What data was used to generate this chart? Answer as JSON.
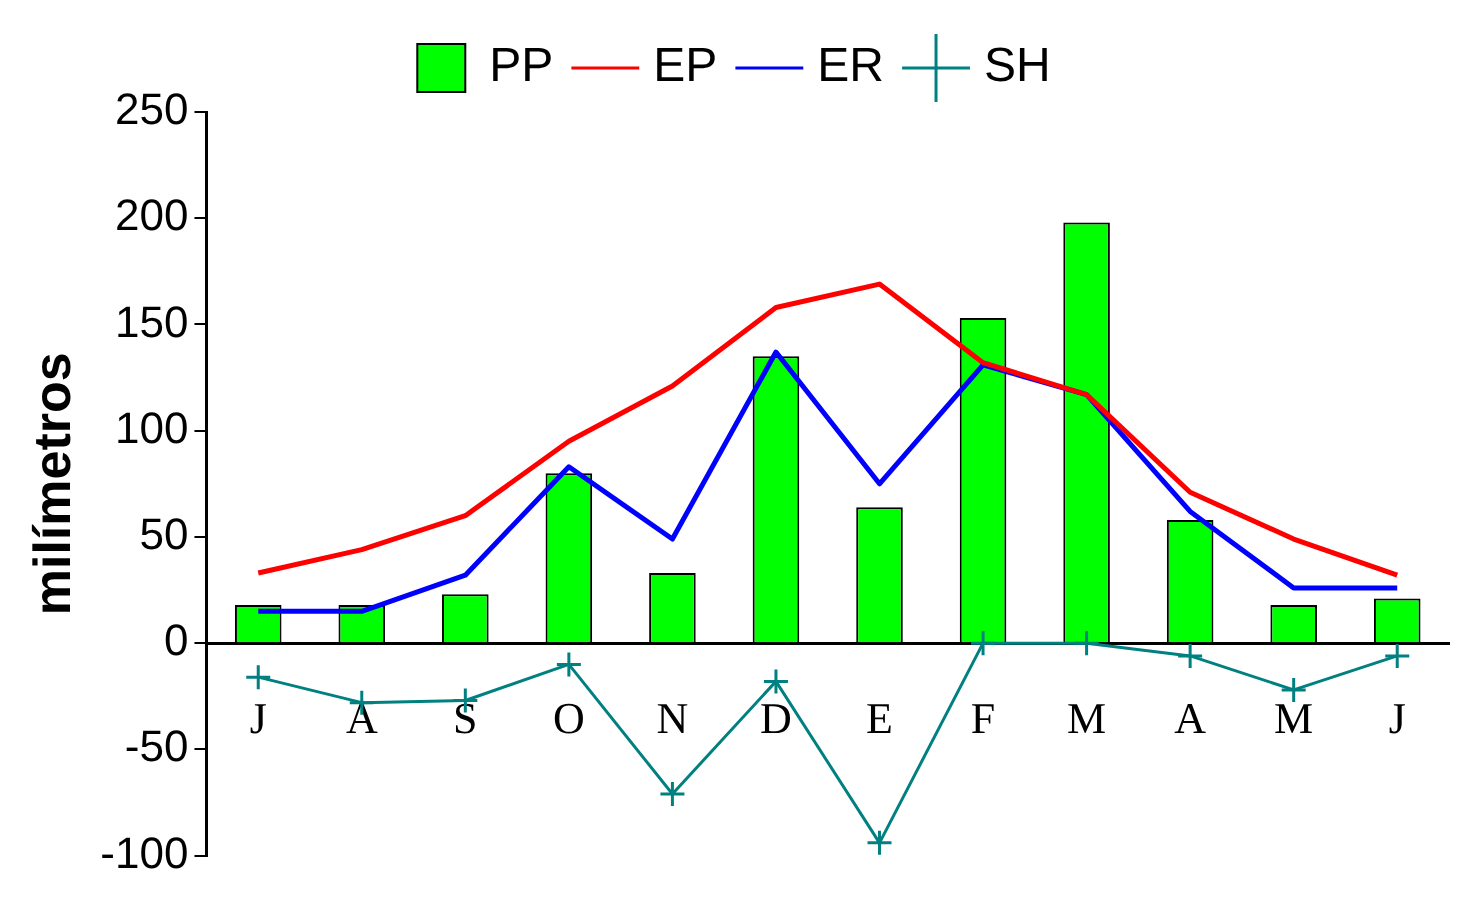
{
  "chart_data": {
    "type": "bar",
    "ylabel": "milímetros",
    "categories": [
      "J",
      "A",
      "S",
      "O",
      "N",
      "D",
      "E",
      "F",
      "M",
      "A",
      "M",
      "J"
    ],
    "series": [
      {
        "name": "PP",
        "color": "#00ff00",
        "values": [
          18,
          18,
          23,
          80,
          33,
          135,
          64,
          153,
          198,
          58,
          18,
          21
        ]
      },
      {
        "name": "EP",
        "type": "line",
        "color": "#ff0000",
        "marker": "none",
        "values": [
          33,
          44,
          60,
          95,
          121,
          158,
          169,
          132,
          117,
          71,
          49,
          32
        ]
      },
      {
        "name": "ER",
        "type": "line",
        "color": "#0000ff",
        "marker": "none",
        "values": [
          15,
          15,
          32,
          83,
          49,
          137,
          75,
          131,
          117,
          62,
          26,
          26
        ]
      },
      {
        "name": "SH",
        "type": "line",
        "color": "#008080",
        "marker": "cross",
        "values": [
          -16,
          -28,
          -27,
          -10,
          -71,
          -18,
          -94,
          0,
          0,
          -6,
          -22,
          -6
        ]
      }
    ],
    "ylim": [
      -100,
      250
    ],
    "yticks": [
      -100,
      -50,
      0,
      50,
      100,
      150,
      200,
      250
    ],
    "grid": false,
    "legend": "top"
  }
}
